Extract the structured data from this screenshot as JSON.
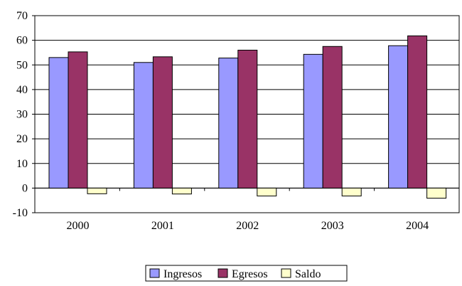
{
  "chart_data": {
    "type": "bar",
    "categories": [
      "2000",
      "2001",
      "2002",
      "2003",
      "2004"
    ],
    "series": [
      {
        "name": "Ingresos",
        "color": "#9999ff",
        "values": [
          53.0,
          51.0,
          52.8,
          54.3,
          57.8
        ]
      },
      {
        "name": "Egresos",
        "color": "#993366",
        "values": [
          55.3,
          53.3,
          56.0,
          57.5,
          61.8
        ]
      },
      {
        "name": "Saldo",
        "color": "#ffffcc",
        "values": [
          -2.3,
          -2.4,
          -3.2,
          -3.2,
          -4.1
        ]
      }
    ],
    "ylim": [
      -10,
      70
    ],
    "yticks": [
      -10,
      0,
      10,
      20,
      30,
      40,
      50,
      60,
      70
    ],
    "grid": true,
    "legend_position": "bottom"
  }
}
